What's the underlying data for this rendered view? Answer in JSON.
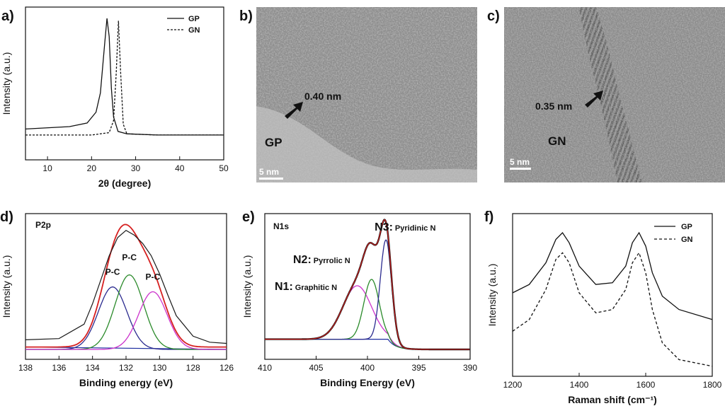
{
  "panels": {
    "a": {
      "label": "a)"
    },
    "b": {
      "label": "b)",
      "spacing": "0.40 nm",
      "sample": "GP",
      "scale": "5 nm"
    },
    "c": {
      "label": "c)",
      "spacing": "0.35 nm",
      "sample": "GN",
      "scale": "5 nm"
    },
    "d": {
      "label": "d)"
    },
    "e": {
      "label": "e)"
    },
    "f": {
      "label": "f)"
    }
  },
  "chart_data": [
    {
      "id": "a",
      "type": "line",
      "xlabel": "2θ (degree)",
      "ylabel": "Intensity (a.u.)",
      "xlim": [
        5,
        50
      ],
      "xticks": [
        10,
        20,
        30,
        40,
        50
      ],
      "legend_position": "top-right",
      "series": [
        {
          "name": "GP",
          "style": "solid",
          "x": [
            5,
            15,
            19,
            21,
            22,
            23,
            23.5,
            24,
            24.5,
            25,
            26,
            28,
            35,
            50
          ],
          "y": [
            0.08,
            0.1,
            0.13,
            0.22,
            0.38,
            0.8,
            1.0,
            0.85,
            0.42,
            0.18,
            0.06,
            0.04,
            0.03,
            0.03
          ]
        },
        {
          "name": "GN",
          "style": "dashed",
          "x": [
            5,
            20,
            24,
            25,
            25.6,
            26.1,
            26.6,
            27.2,
            28,
            35,
            50
          ],
          "y": [
            0.03,
            0.03,
            0.05,
            0.15,
            0.55,
            0.98,
            0.55,
            0.12,
            0.04,
            0.03,
            0.03
          ]
        }
      ]
    },
    {
      "id": "d",
      "type": "line",
      "annotation": "P2p",
      "xlabel": "Binding  energy (eV)",
      "ylabel": "Intensity (a.u.)",
      "xlim": [
        138,
        126
      ],
      "xticks": [
        138,
        136,
        134,
        132,
        130,
        128,
        126
      ],
      "peak_labels": [
        "P-C",
        "P-C",
        "P-C"
      ],
      "series": [
        {
          "name": "",
          "color": "#1a1a1a",
          "role": "data",
          "x": [
            138,
            136,
            134.5,
            134,
            133.5,
            133,
            132.5,
            132,
            131.5,
            131,
            130.5,
            130,
            129.5,
            129,
            128,
            127,
            126
          ],
          "y": [
            0.05,
            0.06,
            0.18,
            0.35,
            0.55,
            0.75,
            0.9,
            0.96,
            0.92,
            0.85,
            0.75,
            0.6,
            0.42,
            0.25,
            0.08,
            0.03,
            0.02
          ]
        },
        {
          "name": "",
          "color": "#2b2b8f",
          "role": "component",
          "center": 132.8,
          "height": 0.52
        },
        {
          "name": "",
          "color": "#2a8a2a",
          "role": "component",
          "center": 131.8,
          "height": 0.62
        },
        {
          "name": "",
          "color": "#cc33cc",
          "role": "component",
          "center": 130.4,
          "height": 0.48
        },
        {
          "name": "",
          "color": "#d62020",
          "role": "envelope"
        }
      ]
    },
    {
      "id": "e",
      "type": "line",
      "annotation": "N1s",
      "xlabel": "Binding Energy (eV)",
      "ylabel": "Intensity (a.u.)",
      "xlim": [
        410,
        390
      ],
      "xticks": [
        410,
        405,
        400,
        395,
        390
      ],
      "peak_labels": [
        {
          "tag": "N3:",
          "text": "Pyridinic N"
        },
        {
          "tag": "N2:",
          "text": "Pyrrolic N"
        },
        {
          "tag": "N1:",
          "text": "Graphitic N"
        }
      ],
      "series": [
        {
          "name": "",
          "color": "#d62020",
          "role": "envelope"
        },
        {
          "name": "",
          "color": "#cc33cc",
          "role": "component",
          "center": 401.0,
          "height": 0.42
        },
        {
          "name": "",
          "color": "#2a8a2a",
          "role": "component",
          "center": 399.6,
          "height": 0.47
        },
        {
          "name": "",
          "color": "#2b2b8f",
          "role": "component",
          "center": 398.2,
          "height": 0.78
        }
      ]
    },
    {
      "id": "f",
      "type": "line",
      "xlabel": "Raman  shift (cm⁻¹)",
      "ylabel": "Intensity (a.u.)",
      "xlim": [
        1200,
        1800
      ],
      "xticks": [
        1200,
        1400,
        1600,
        1800
      ],
      "legend_position": "top-right",
      "series": [
        {
          "name": "GP",
          "style": "solid",
          "x": [
            1200,
            1250,
            1300,
            1330,
            1350,
            1370,
            1400,
            1450,
            1500,
            1540,
            1560,
            1580,
            1600,
            1620,
            1650,
            1700,
            1800
          ],
          "y": [
            0.5,
            0.55,
            0.68,
            0.82,
            0.86,
            0.8,
            0.66,
            0.55,
            0.56,
            0.66,
            0.8,
            0.86,
            0.78,
            0.62,
            0.48,
            0.4,
            0.34
          ]
        },
        {
          "name": "GN",
          "style": "dashed",
          "x": [
            1200,
            1250,
            1300,
            1330,
            1350,
            1370,
            1400,
            1450,
            1500,
            1540,
            1560,
            1580,
            1600,
            1620,
            1650,
            1700,
            1800
          ],
          "y": [
            0.27,
            0.34,
            0.52,
            0.7,
            0.74,
            0.68,
            0.5,
            0.38,
            0.4,
            0.52,
            0.68,
            0.74,
            0.62,
            0.4,
            0.2,
            0.1,
            0.06
          ]
        }
      ]
    }
  ]
}
